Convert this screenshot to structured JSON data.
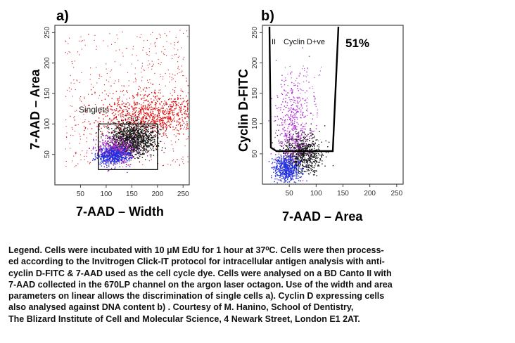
{
  "legend_text": "Legend. Cells were incubated with 10 μM EdU for 1 hour at 37⁰C. Cells were then process-\ned according to the Invitrogen Click-IT protocol for intracellular antigen analysis with anti-\ncyclin D-FITC & 7-AAD used as the cell cycle dye. Cells were analysed on a BD Canto II with\n7-AAD collected in the 670LP channel on the argon laser octagon. Use of the width and area\nparameters on linear allows the discrimination of single cells a). Cyclin D expressing cells\nalso analysed against DNA content b) . Courtesy of M. Hanino, School of Dentistry,\nThe Blizard Institute of Cell and Molecular Science, 4 Newark Street, London E1 2AT.",
  "chart_data": [
    {
      "type": "scatter",
      "panel": "a)",
      "xlabel": "7-AAD – Width",
      "ylabel": "7-AAD – Area",
      "xlim": [
        0,
        262
      ],
      "ylim": [
        0,
        262
      ],
      "x_ticks": [
        "50",
        "100",
        "150",
        "200",
        "250"
      ],
      "y_ticks": [
        "50",
        "100",
        "150",
        "200",
        "250"
      ],
      "x_tick_values": [
        50,
        100,
        150,
        200,
        250
      ],
      "y_tick_values": [
        50,
        100,
        150,
        200,
        250
      ],
      "gate": {
        "label": "Singlets",
        "shape": "rectangle",
        "x_range": [
          85,
          200
        ],
        "y_range": [
          25,
          100
        ]
      },
      "populations": [
        {
          "color": "#e01010",
          "description_cx": 190,
          "cy": 115,
          "sx": 55,
          "sy": 18
        },
        {
          "color": "#111111",
          "cx": 150,
          "cy": 75,
          "sx": 22,
          "sy": 14
        },
        {
          "color": "#a020c0",
          "cx": 118,
          "cy": 58,
          "sx": 18,
          "sy": 10
        },
        {
          "color": "#2030e0",
          "cx": 112,
          "cy": 48,
          "sx": 16,
          "sy": 7
        }
      ]
    },
    {
      "type": "scatter",
      "panel": "b)",
      "xlabel": "7-AAD – Area",
      "ylabel": "Cyclin D-FITC",
      "xlim": [
        0,
        262
      ],
      "ylim": [
        0,
        262
      ],
      "x_ticks": [
        "50",
        "100",
        "150",
        "200",
        "250"
      ],
      "y_ticks": [
        "50",
        "100",
        "150",
        "200",
        "250"
      ],
      "x_tick_values": [
        50,
        100,
        150,
        200,
        250
      ],
      "y_tick_values": [
        50,
        100,
        150,
        200,
        250
      ],
      "gate": {
        "label": "Cyclin D+ve",
        "roman": "II",
        "percent": "51%"
      },
      "populations": [
        {
          "color": "#111111",
          "cx": 75,
          "cy": 50,
          "sx": 18,
          "sy": 16
        },
        {
          "color": "#b030d0",
          "cx": 55,
          "cy": 95,
          "sx": 16,
          "sy": 40
        },
        {
          "color": "#2030e0",
          "cx": 45,
          "cy": 25,
          "sx": 12,
          "sy": 10
        }
      ]
    }
  ]
}
